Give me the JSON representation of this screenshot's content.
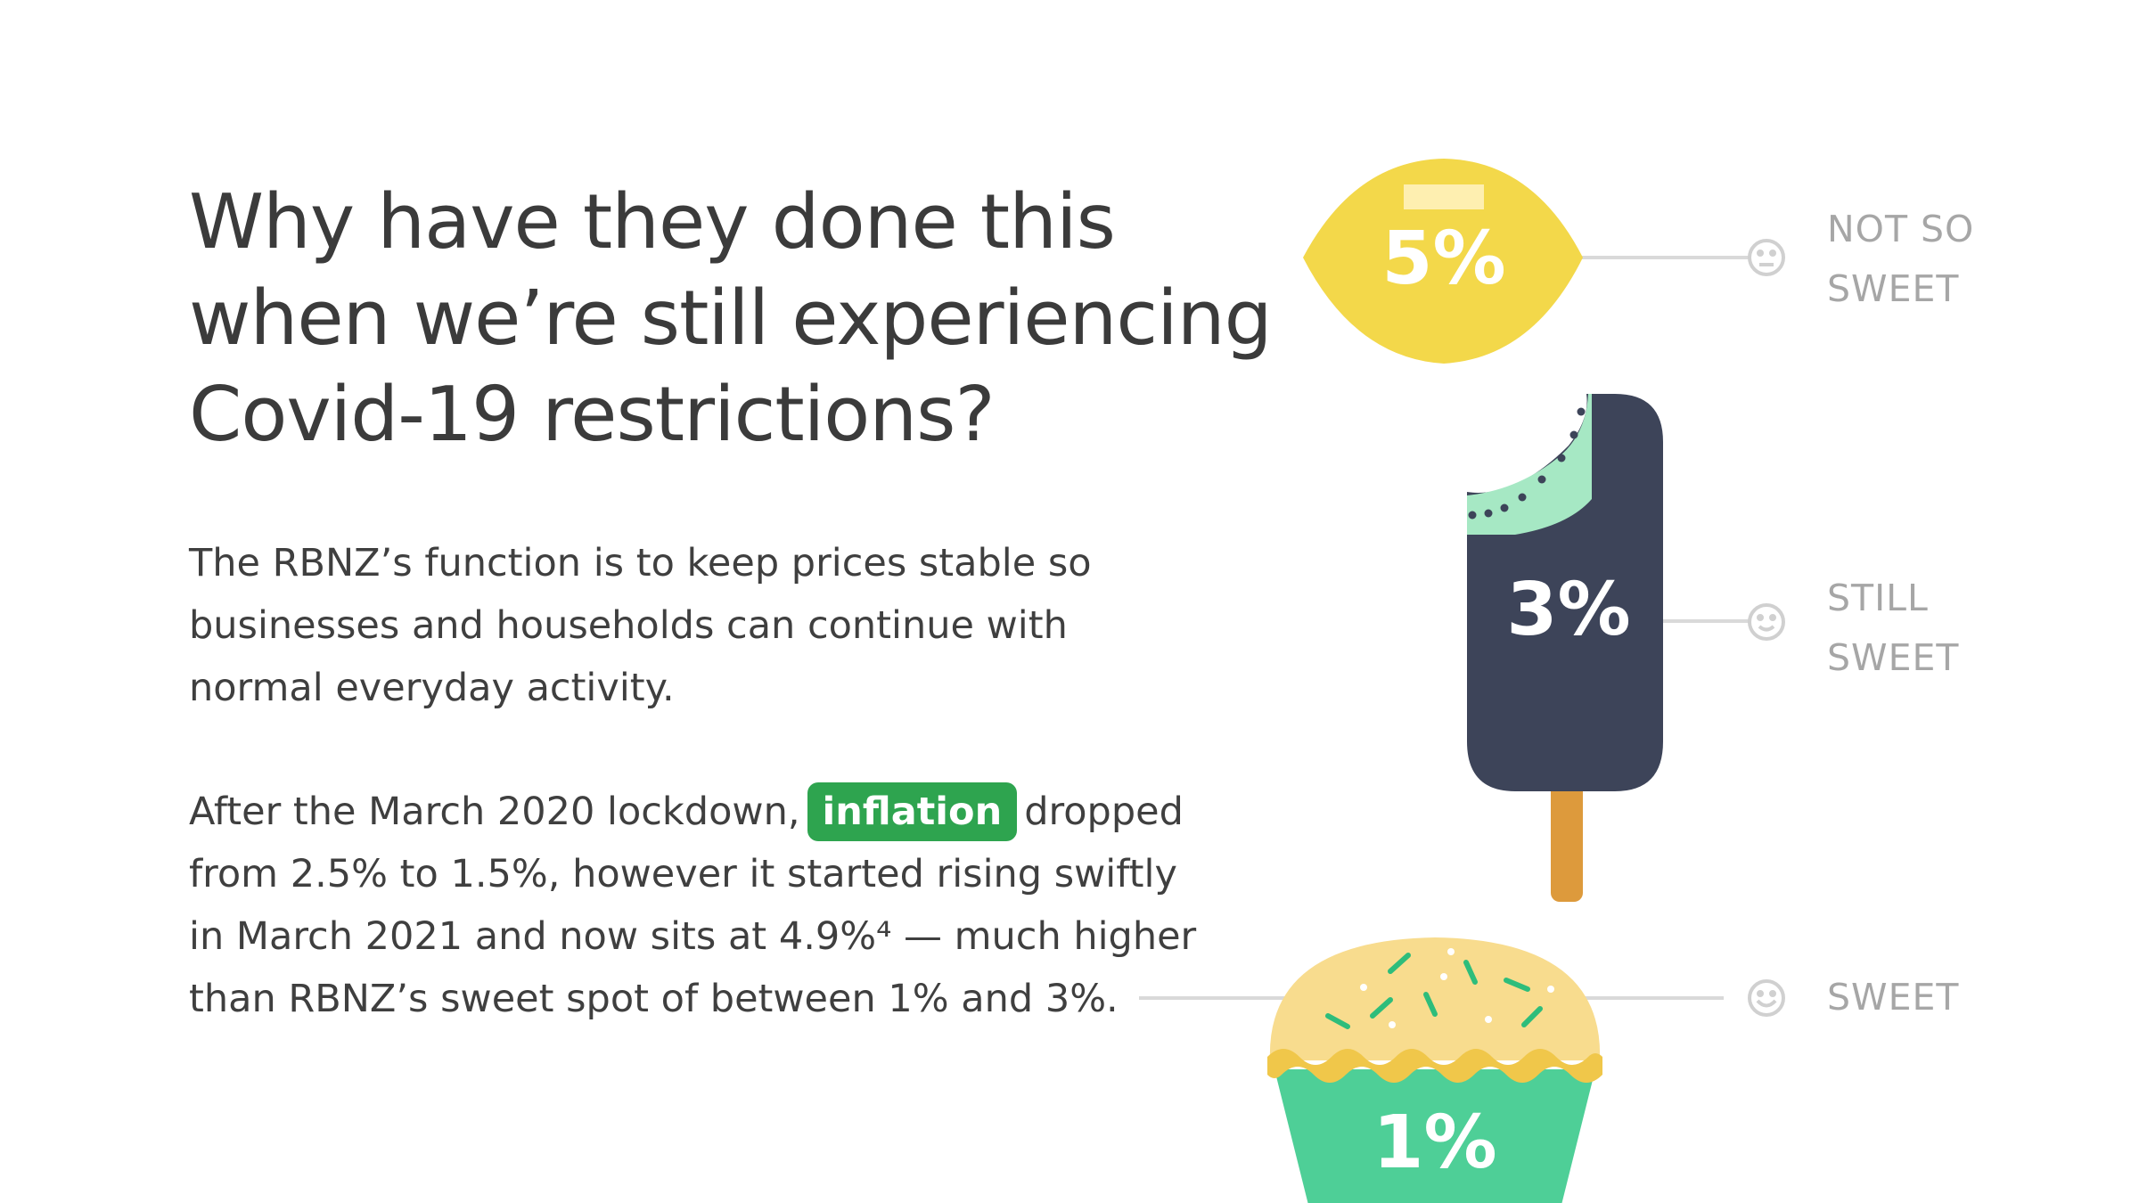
{
  "headline": {
    "lines": [
      "Why have they done this",
      "when we’re still experiencing",
      "Covid-19 restrictions?"
    ]
  },
  "paragraph1": {
    "lines": [
      "The RBNZ’s function is to keep prices stable so",
      "businesses and households can continue with",
      "normal everyday activity."
    ]
  },
  "paragraph2": {
    "line1_before": "After the March 2020 lockdown,",
    "tag": "inflation",
    "line1_after": "dropped",
    "lines": [
      "from 2.5% to 1.5%, however it started rising swiftly",
      "in March 2021 and now sits at 4.9%⁴ — much higher",
      "than RBNZ’s sweet spot of between 1% and 3%."
    ]
  },
  "scale": {
    "lemon": {
      "value": "5%",
      "label_lines": [
        "NOT SO",
        "SWEET"
      ],
      "face_icon": "neutral-face-icon",
      "color": "#f3d84a"
    },
    "icecream": {
      "value": "3%",
      "label_lines": [
        "STILL",
        "SWEET"
      ],
      "face_icon": "smiley-face-icon",
      "color": "#3d4459",
      "bite_color": "#a6e8c4",
      "stick_color": "#dd9a3c"
    },
    "cupcake": {
      "value": "1%",
      "label_lines": [
        "SWEET"
      ],
      "face_icon": "happy-face-icon",
      "color": "#4ecf97",
      "top_color": "#f8dc8e"
    }
  },
  "colors": {
    "tag_bg": "#2ea44f",
    "connector": "#d9d9d9",
    "label_gray": "#a6a6a6"
  }
}
